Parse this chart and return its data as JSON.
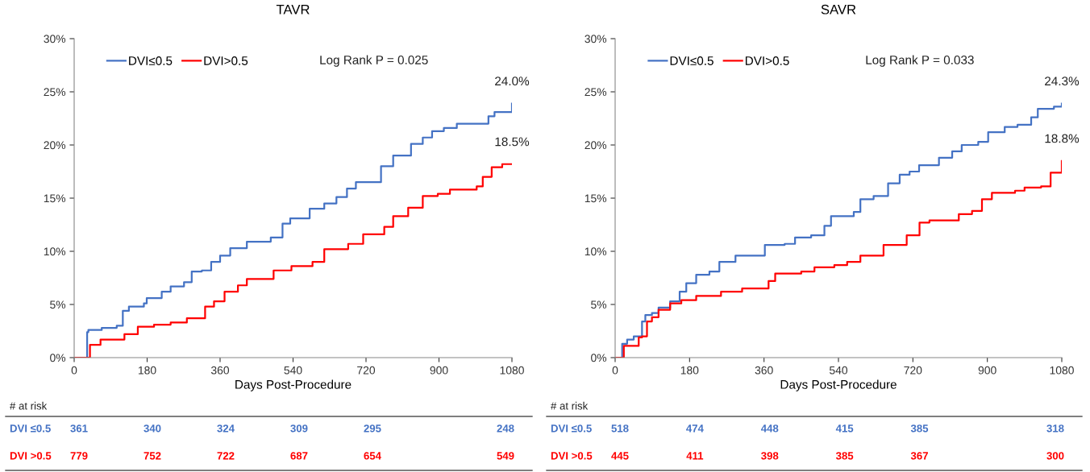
{
  "chart_data": [
    {
      "type": "step",
      "title": "TAVR",
      "xlabel": "Days Post-Procedure",
      "xlim": [
        0,
        1080
      ],
      "xticks": [
        0,
        180,
        360,
        540,
        720,
        900,
        1080
      ],
      "ylim": [
        0,
        30
      ],
      "yticks": [
        {
          "value": 0,
          "label": "0%"
        },
        {
          "value": 5,
          "label": "5%"
        },
        {
          "value": 10,
          "label": "10%"
        },
        {
          "value": 15,
          "label": "15%"
        },
        {
          "value": 20,
          "label": "20%"
        },
        {
          "value": 25,
          "label": "25%"
        },
        {
          "value": 30,
          "label": "30%"
        }
      ],
      "grid": false,
      "legend": "top left",
      "marker": "none",
      "line_style": "solid",
      "series": [
        {
          "name": "DVI≤0.5",
          "color": "#4472c4",
          "x": [
            0,
            32,
            35,
            65,
            68,
            105,
            120,
            135,
            172,
            179,
            216,
            238,
            271,
            290,
            315,
            338,
            360,
            385,
            426,
            485,
            514,
            533,
            570,
            581,
            617,
            647,
            673,
            695,
            735,
            757,
            787,
            831,
            860,
            883,
            912,
            944,
            1004,
            1022,
            1037,
            1080
          ],
          "values": [
            0,
            2.4,
            2.6,
            2.6,
            2.8,
            3.0,
            4.4,
            4.8,
            5.1,
            5.6,
            6.2,
            6.7,
            7.1,
            8.1,
            8.2,
            9.0,
            9.6,
            10.3,
            10.9,
            11.3,
            12.6,
            13.1,
            13.1,
            14.0,
            14.5,
            15.1,
            15.9,
            16.5,
            16.5,
            18.0,
            19.0,
            20.1,
            20.7,
            21.3,
            21.6,
            22.0,
            22.0,
            22.7,
            23.1,
            23.9
          ]
        },
        {
          "name": "DVI>0.5",
          "color": "#ff0000",
          "x": [
            0,
            39,
            65,
            124,
            157,
            197,
            238,
            278,
            323,
            345,
            371,
            404,
            426,
            492,
            536,
            588,
            617,
            676,
            713,
            765,
            787,
            824,
            860,
            897,
            927,
            993,
            1008,
            1030,
            1056,
            1080
          ],
          "values": [
            0,
            1.2,
            1.7,
            2.2,
            2.9,
            3.1,
            3.3,
            3.7,
            4.8,
            5.3,
            6.2,
            6.8,
            7.4,
            8.2,
            8.6,
            9.0,
            10.2,
            10.7,
            11.6,
            12.3,
            13.3,
            14.1,
            15.2,
            15.4,
            15.8,
            16.1,
            17.0,
            17.9,
            18.2,
            18.2
          ]
        }
      ],
      "annotations": [
        "Log Rank P = 0.025",
        "24.0%",
        "18.5%",
        "# at risk",
        "DVI ≤0.5",
        "361",
        "340",
        "324",
        "309",
        "295",
        "248",
        "DVI >0.5",
        "779",
        "752",
        "722",
        "687",
        "654",
        "549"
      ]
    },
    {
      "type": "step",
      "title": "SAVR",
      "xlabel": "Days Post-Procedure",
      "xlim": [
        0,
        1080
      ],
      "xticks": [
        0,
        180,
        360,
        540,
        720,
        900,
        1080
      ],
      "ylim": [
        0,
        30
      ],
      "yticks": [
        {
          "value": 0,
          "label": "0%"
        },
        {
          "value": 5,
          "label": "5%"
        },
        {
          "value": 10,
          "label": "10%"
        },
        {
          "value": 15,
          "label": "15%"
        },
        {
          "value": 20,
          "label": "20%"
        },
        {
          "value": 25,
          "label": "25%"
        },
        {
          "value": 30,
          "label": "30%"
        }
      ],
      "grid": false,
      "legend": "top left",
      "marker": "none",
      "line_style": "solid",
      "series": [
        {
          "name": "DVI≤0.5",
          "color": "#4472c4",
          "x": [
            0,
            17,
            29,
            45,
            65,
            73,
            89,
            105,
            133,
            156,
            172,
            196,
            228,
            252,
            291,
            339,
            362,
            410,
            435,
            474,
            506,
            522,
            577,
            593,
            625,
            660,
            688,
            712,
            735,
            783,
            815,
            838,
            878,
            902,
            942,
            973,
            1006,
            1022,
            1061,
            1080
          ],
          "values": [
            0,
            1.3,
            1.7,
            2.0,
            3.4,
            4.0,
            4.2,
            4.7,
            5.3,
            6.2,
            7.0,
            7.8,
            8.1,
            9.0,
            9.6,
            9.6,
            10.6,
            10.7,
            11.3,
            11.5,
            12.4,
            13.3,
            13.7,
            14.9,
            15.2,
            16.4,
            17.2,
            17.5,
            18.1,
            18.8,
            19.4,
            20.0,
            20.3,
            21.2,
            21.7,
            21.9,
            22.6,
            23.4,
            23.6,
            23.9
          ]
        },
        {
          "name": "DVI>0.5",
          "color": "#ff0000",
          "x": [
            0,
            13,
            21,
            41,
            57,
            65,
            77,
            89,
            105,
            133,
            160,
            196,
            244,
            256,
            291,
            307,
            347,
            371,
            387,
            450,
            482,
            530,
            561,
            593,
            633,
            649,
            673,
            705,
            736,
            760,
            815,
            831,
            863,
            887,
            911,
            967,
            990,
            1030,
            1053,
            1080
          ],
          "values": [
            0,
            0,
            1.1,
            1.1,
            1.9,
            2.0,
            3.4,
            3.8,
            4.5,
            5.1,
            5.4,
            5.8,
            5.8,
            6.2,
            6.2,
            6.5,
            6.5,
            7.2,
            7.9,
            8.1,
            8.5,
            8.7,
            9.0,
            9.6,
            9.6,
            10.6,
            10.6,
            11.5,
            12.7,
            12.9,
            12.9,
            13.5,
            13.8,
            14.9,
            15.5,
            15.7,
            16.0,
            16.1,
            17.4,
            18.5
          ]
        }
      ],
      "annotations": [
        "Log Rank P = 0.033",
        "24.3%",
        "18.8%",
        "# at risk",
        "DVI ≤0.5",
        "518",
        "474",
        "448",
        "415",
        "385",
        "318",
        "DVI >0.5",
        "445",
        "411",
        "398",
        "385",
        "367",
        "300"
      ]
    }
  ]
}
